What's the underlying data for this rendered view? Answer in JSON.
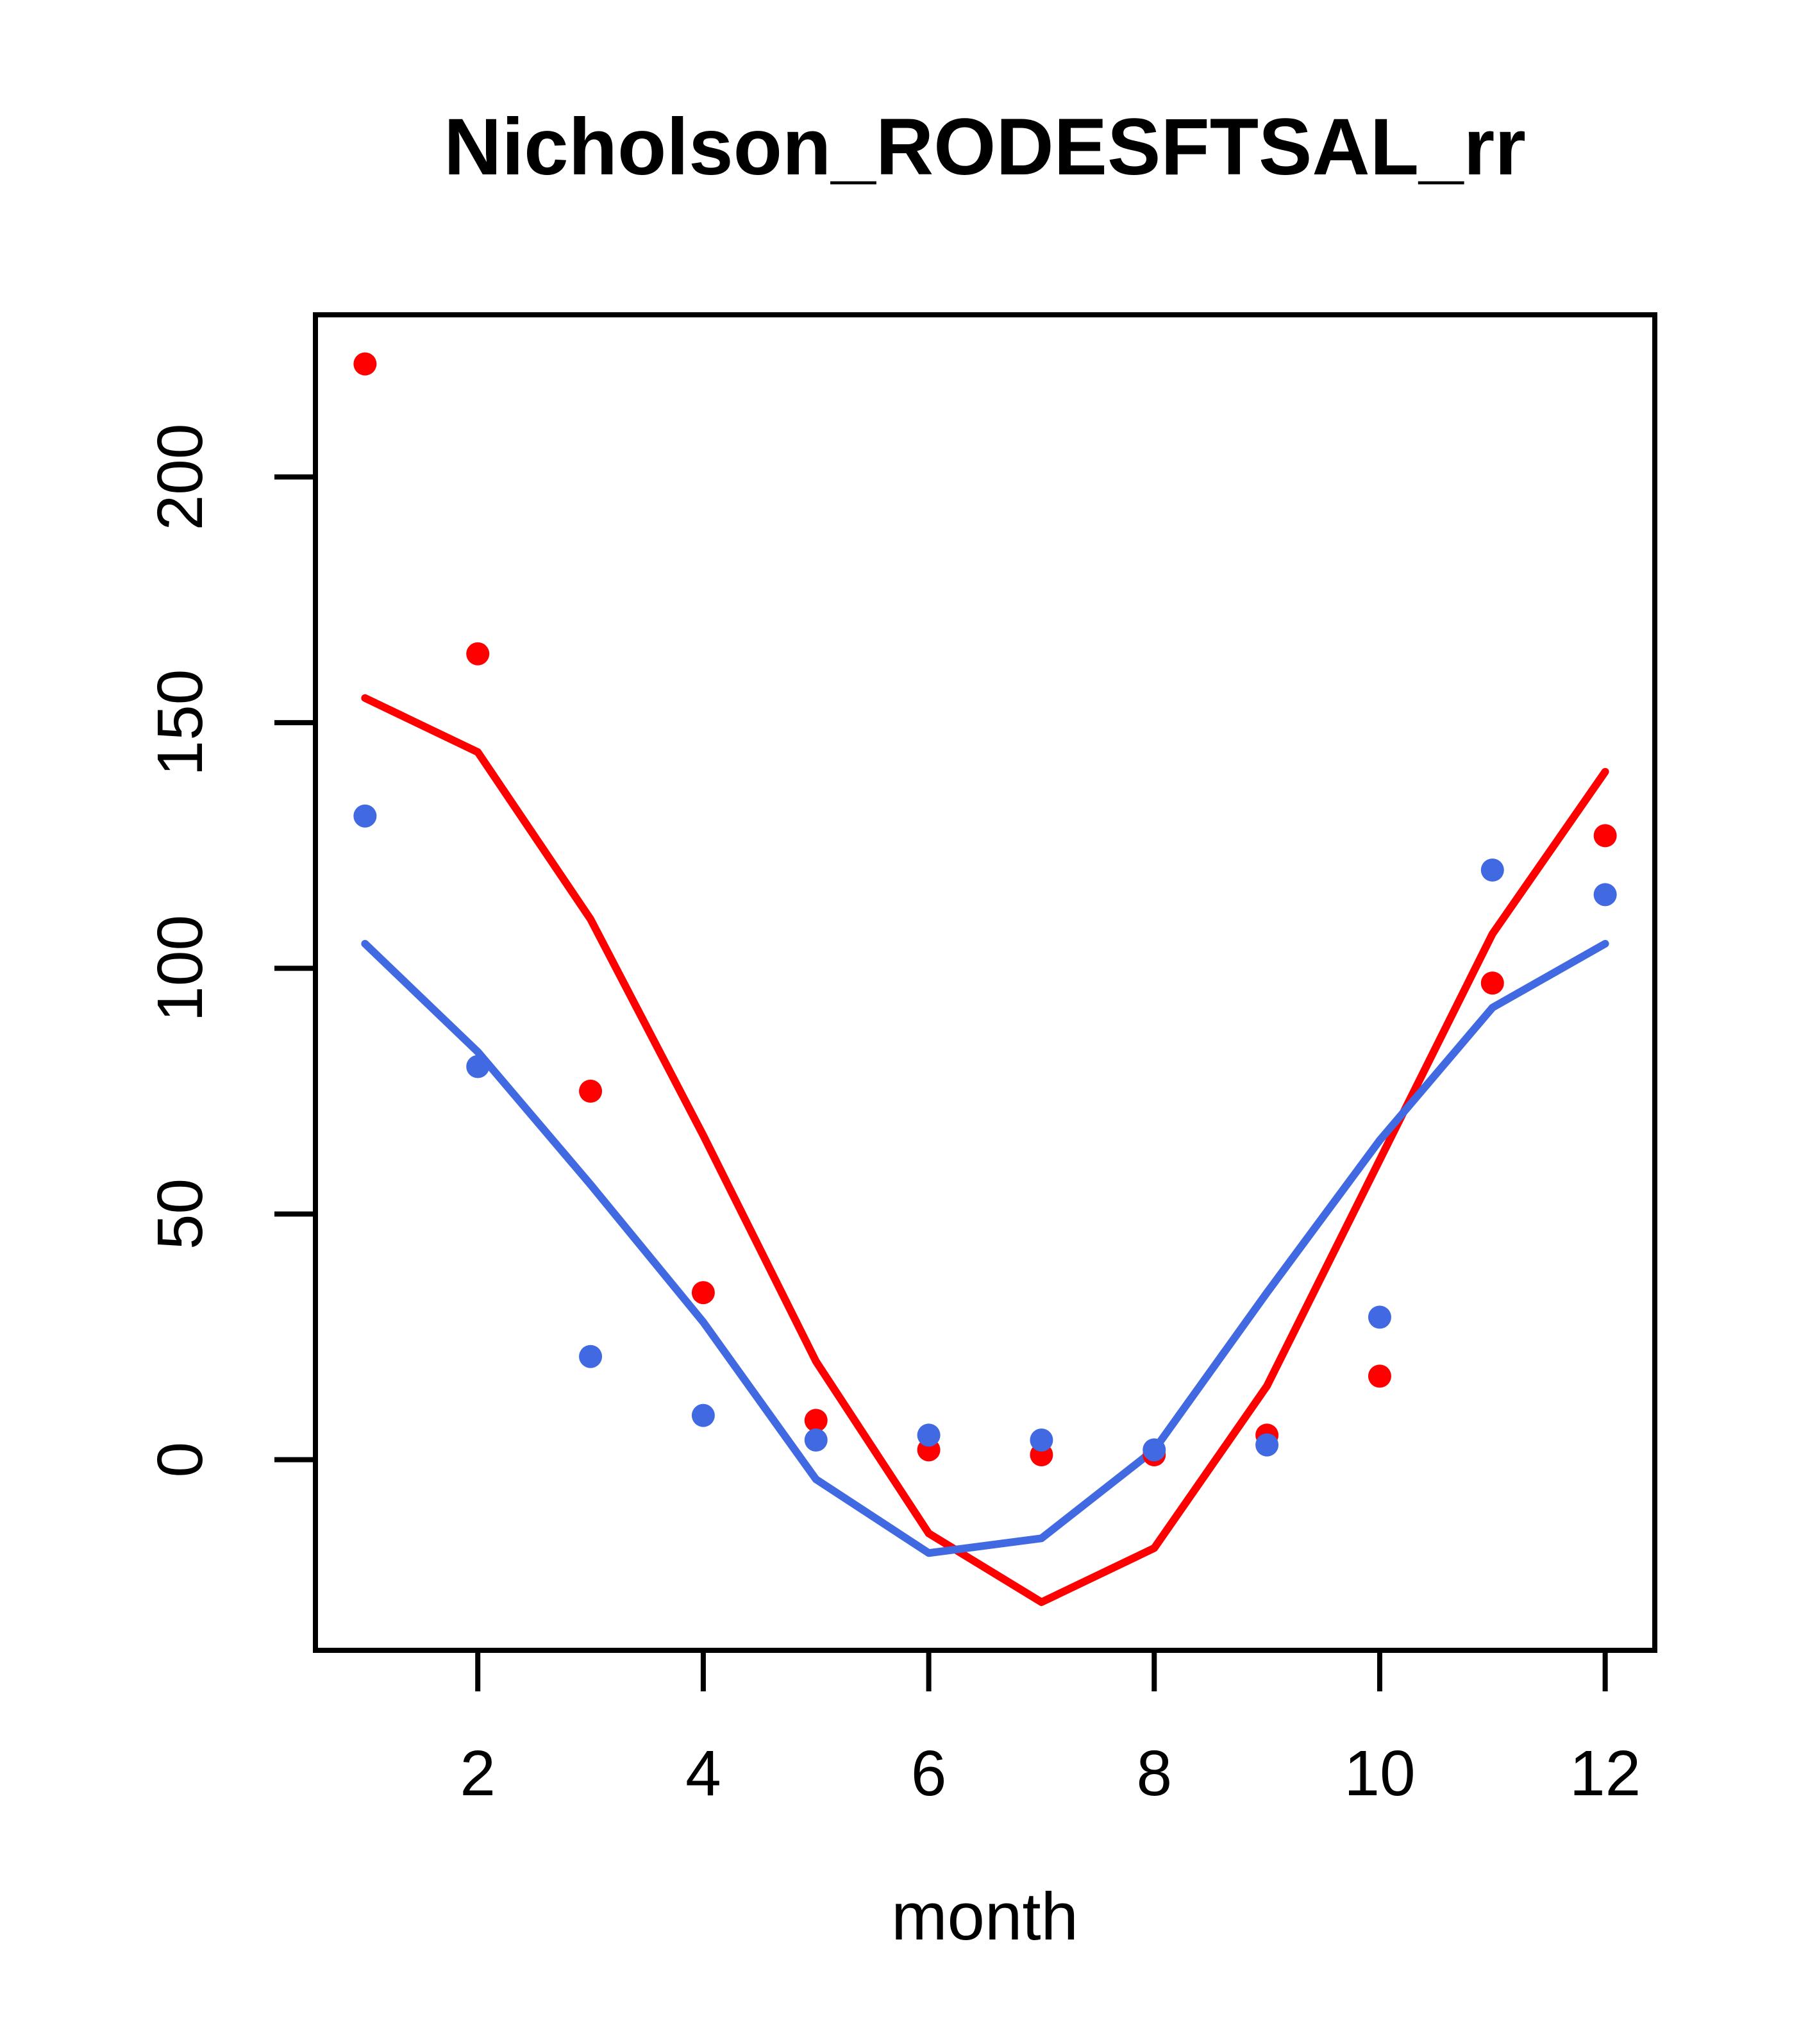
{
  "chart_data": {
    "type": "scatter",
    "title": "Nicholson_RODESFTSAL_rr",
    "xlabel": "month",
    "ylabel": "",
    "x": [
      1,
      2,
      3,
      4,
      5,
      6,
      7,
      8,
      9,
      10,
      11,
      12
    ],
    "series": [
      {
        "name": "red-smooth-line",
        "kind": "line",
        "color": "#FF0000",
        "values": [
          155,
          144,
          110,
          66,
          20,
          -15,
          -29,
          -18,
          15,
          61,
          107,
          140
        ]
      },
      {
        "name": "blue-smooth-line",
        "kind": "line",
        "color": "#4169E1",
        "values": [
          105,
          83,
          56,
          28,
          -4,
          -19,
          -16,
          2,
          34,
          65,
          92,
          105
        ]
      },
      {
        "name": "red-points",
        "kind": "points",
        "color": "#FF0000",
        "values": [
          223,
          164,
          75,
          34,
          8,
          2,
          1,
          1,
          5,
          17,
          97,
          127
        ]
      },
      {
        "name": "blue-points",
        "kind": "points",
        "color": "#4169E1",
        "values": [
          131,
          80,
          21,
          9,
          4,
          5,
          4,
          2,
          3,
          29,
          120,
          115
        ]
      }
    ],
    "xticks": [
      2,
      4,
      6,
      8,
      10,
      12
    ],
    "yticks": [
      0,
      50,
      100,
      150,
      200
    ],
    "xlim": [
      0.56,
      12.44
    ],
    "ylim": [
      -38.8,
      233.0
    ],
    "grid": false,
    "legend": "none",
    "point_color_red": "#FF0000",
    "point_color_blue": "#4169E1",
    "background": "#FFFFFF",
    "axis_color": "#000000"
  }
}
